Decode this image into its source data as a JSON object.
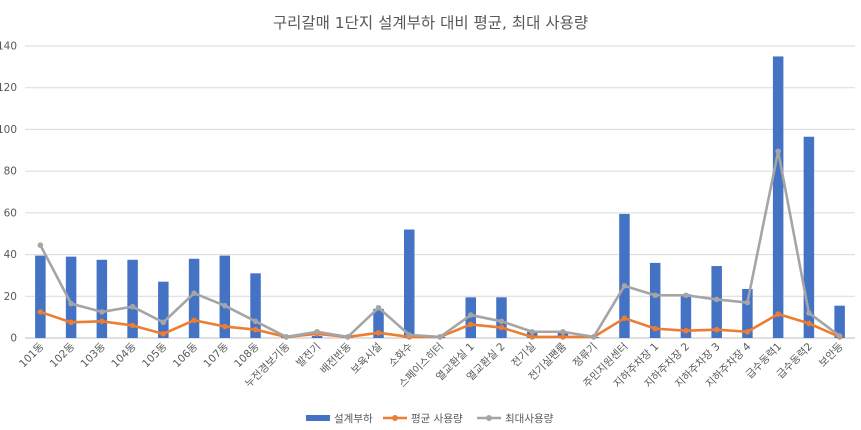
{
  "chart_data": {
    "type": "bar",
    "title": "구리갈매 1단지 설계부하 대비 평균, 최대 사용량",
    "xlabel": "",
    "ylabel": "",
    "ylim": [
      0,
      140
    ],
    "yticks": [
      0,
      20,
      40,
      60,
      80,
      100,
      120,
      140
    ],
    "grid": true,
    "legend_position": "bottom",
    "categories": [
      "101동",
      "102동",
      "103동",
      "104동",
      "105동",
      "106동",
      "107동",
      "108동",
      "누전경보기동",
      "발전기",
      "배전반동",
      "보육시설",
      "소화수",
      "스페이스히터",
      "열교환실 1",
      "열교환실 2",
      "전기실",
      "전기실팬룸",
      "정류기",
      "주민지원센터",
      "지하주차장 1",
      "지하주차장 2",
      "지하주차장 3",
      "지하주차장 4",
      "급수동력1",
      "급수동력2",
      "보안등"
    ],
    "series": [
      {
        "name": "설계부하",
        "type": "bar",
        "color": "#4472C4",
        "values": [
          39.5,
          39,
          37.5,
          37.5,
          27,
          38,
          39.5,
          31,
          0.5,
          1,
          1,
          14,
          52,
          0.5,
          19.5,
          19.5,
          3,
          3,
          0.5,
          59.5,
          36,
          21,
          34.5,
          23.5,
          135,
          96.5,
          15.5
        ]
      },
      {
        "name": "평균 사용량",
        "type": "line",
        "color": "#ED7D31",
        "values": [
          12.5,
          7.5,
          8,
          6,
          2,
          8.5,
          5.5,
          4,
          0.5,
          2,
          0.5,
          2.5,
          0.5,
          0.5,
          6.5,
          5,
          0.5,
          0.5,
          0.5,
          9.5,
          4.5,
          3.5,
          4,
          3,
          11.5,
          7,
          0.5
        ]
      },
      {
        "name": "최대사용량",
        "type": "line",
        "color": "#A5A5A5",
        "values": [
          44.5,
          16.5,
          12.5,
          15,
          7.5,
          21.5,
          15.5,
          8,
          0.5,
          3,
          0.5,
          14.5,
          1.5,
          0.5,
          11,
          8,
          3,
          3,
          0.5,
          25,
          20.5,
          20.5,
          18.5,
          17,
          89.5,
          12,
          1
        ]
      }
    ]
  }
}
